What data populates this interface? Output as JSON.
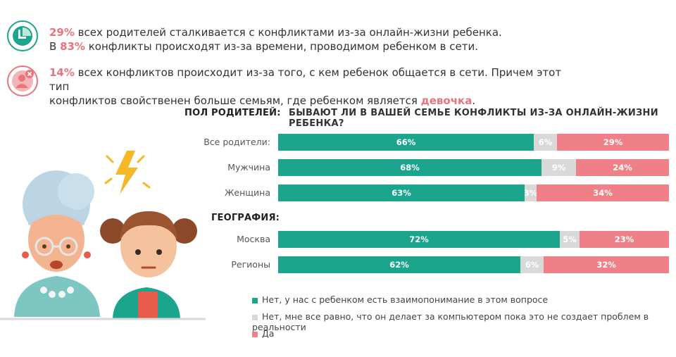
{
  "facts": [
    {
      "line1_pre": "29%",
      "line1_text": " всех родителей сталкивается с конфликтами из-за онлайн-жизни ребенка.",
      "line2_pre": "В ",
      "line2_pct": "83%",
      "line2_text": " конфликты происходят из-за времени, проводимом ребенком в сети."
    },
    {
      "line1_pre": "14%",
      "line1_text": " всех конфликтов происходит из-за того, с кем ребенок общается в сети. Причем этот тип",
      "line2_text": "конфликтов свойственен больше семьям, где ребенком является ",
      "line2_emph": "девочка",
      "line2_end": "."
    }
  ],
  "icons": [
    "clock-icon",
    "user-blocked-icon",
    "lightning-icon",
    "grandmother-illustration",
    "girl-illustration"
  ],
  "colors": {
    "green": "#1aa58c",
    "grey": "#d9d9d9",
    "pink": "#f08087",
    "accent": "#e8747c"
  },
  "chart_data": {
    "type": "bar",
    "orientation": "horizontal",
    "stacked": true,
    "normalized": true,
    "title": "БЫВАЮТ ЛИ В ВАШЕЙ СЕМЬЕ КОНФЛИКТЫ ИЗ-ЗА ОНЛАЙН-ЖИЗНИ РЕБЕНКА?",
    "groups": [
      {
        "label": "ПОЛ РОДИТЕЛЕЙ:",
        "rows": [
          {
            "label": "Все родители:",
            "values": [
              66,
              6,
              29
            ]
          },
          {
            "label": "Мужчина",
            "values": [
              68,
              9,
              24
            ]
          },
          {
            "label": "Женщина",
            "values": [
              63,
              3,
              34
            ]
          }
        ]
      },
      {
        "label": "ГЕОГРАФИЯ:",
        "rows": [
          {
            "label": "Москва",
            "values": [
              72,
              5,
              23
            ]
          },
          {
            "label": "Регионы",
            "values": [
              62,
              6,
              32
            ]
          }
        ]
      }
    ],
    "series": [
      {
        "name": "Нет, у нас с ребенком есть взаимопонимание в этом вопросе",
        "color": "#1aa58c"
      },
      {
        "name": "Нет, мне все равно, что он делает за компьютером пока это не создает проблем в реальности",
        "color": "#d9d9d9"
      },
      {
        "name": "Да",
        "color": "#f08087"
      }
    ],
    "value_suffix": "%",
    "legend_position": "bottom"
  }
}
